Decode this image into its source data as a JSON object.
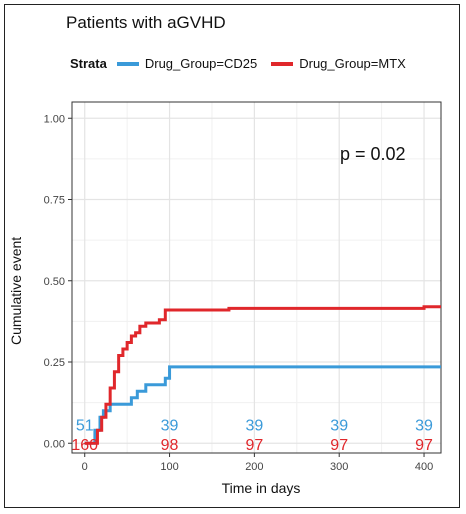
{
  "chart_data": {
    "type": "line",
    "title": "Patients with aGVHD",
    "legend_title": "Strata",
    "legend_placement": "top",
    "xlabel": "Time in days",
    "ylabel": "Cumulative event",
    "xlim": [
      -15,
      420
    ],
    "ylim": [
      -0.03,
      1.05
    ],
    "xticks": [
      0,
      100,
      200,
      300,
      400
    ],
    "yticks": [
      0.0,
      0.25,
      0.5,
      0.75,
      1.0
    ],
    "ytick_labels": [
      "0.00",
      "0.25",
      "0.50",
      "0.75",
      "1.00"
    ],
    "grid": true,
    "annotation": "p = 0.02",
    "series": [
      {
        "name": "Drug_Group=CD25",
        "color": "#3a9ad9",
        "x": [
          0,
          10,
          12,
          18,
          22,
          30,
          45,
          55,
          62,
          72,
          88,
          95,
          100,
          420
        ],
        "y": [
          0,
          0,
          0.04,
          0.08,
          0.1,
          0.12,
          0.12,
          0.14,
          0.16,
          0.18,
          0.18,
          0.2,
          0.235,
          0.235
        ],
        "at_risk": [
          51,
          39,
          39,
          39,
          39
        ]
      },
      {
        "name": "Drug_Group=MTX",
        "color": "#e0272b",
        "x": [
          0,
          10,
          15,
          20,
          25,
          30,
          35,
          40,
          45,
          50,
          55,
          60,
          65,
          72,
          80,
          88,
          95,
          100,
          170,
          300,
          400,
          420
        ],
        "y": [
          0,
          0,
          0.04,
          0.08,
          0.12,
          0.17,
          0.22,
          0.27,
          0.29,
          0.31,
          0.33,
          0.34,
          0.36,
          0.37,
          0.37,
          0.38,
          0.41,
          0.41,
          0.415,
          0.415,
          0.42,
          0.42
        ],
        "at_risk": [
          160,
          98,
          97,
          97,
          97
        ]
      }
    ]
  }
}
